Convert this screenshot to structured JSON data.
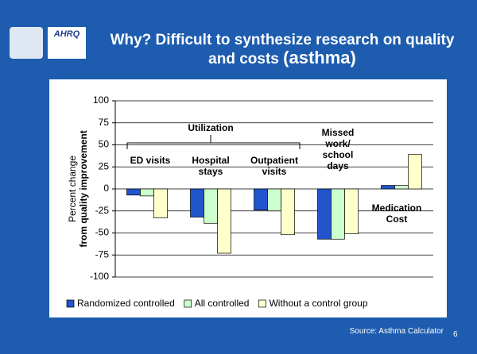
{
  "title": "Why? Difficult to synthesize research on quality and costs",
  "title_suffix": "(asthma)",
  "logo": "AHRQ",
  "source": "Source: Asthma Calculator",
  "slide_number": "6",
  "chart_data": {
    "type": "bar",
    "ylabel": [
      "Percent change",
      "from quality improvement"
    ],
    "annotation": "Utilization",
    "categories": [
      "ED visits",
      "Hospital stays",
      "Outpatient visits",
      "Missed work/ school days",
      "Medication Cost"
    ],
    "series": [
      {
        "name": "Randomized controlled",
        "color": "#2255cc",
        "values": [
          -7,
          -32,
          -24,
          -57,
          4
        ]
      },
      {
        "name": "All controlled",
        "color": "#ccffcc",
        "values": [
          -8,
          -39,
          -25,
          -57,
          4
        ]
      },
      {
        "name": "Without a control group",
        "color": "#ffffcc",
        "values": [
          -33,
          -73,
          -52,
          -51,
          39
        ]
      }
    ],
    "ylim": [
      -100,
      100
    ],
    "yticks": [
      -100,
      -75,
      -50,
      -25,
      0,
      25,
      50,
      75,
      100
    ],
    "grid": true
  }
}
